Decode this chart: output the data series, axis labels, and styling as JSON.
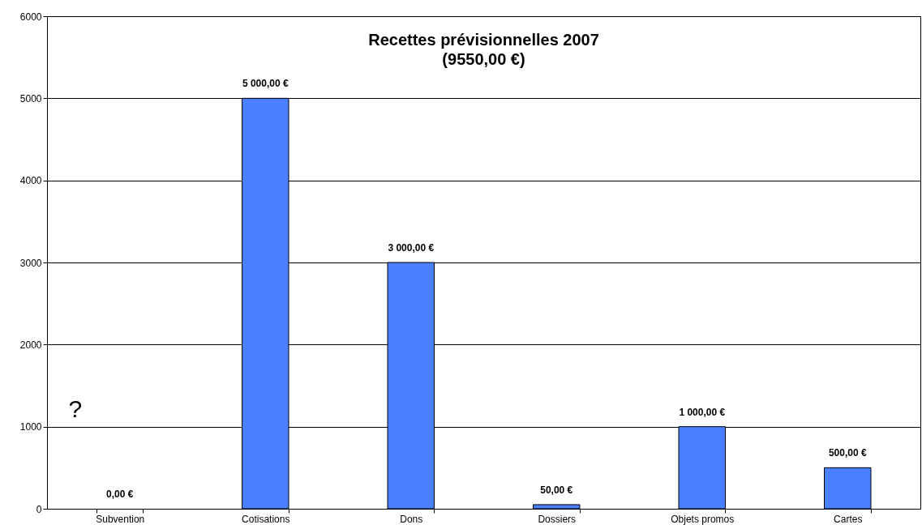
{
  "chart_data": {
    "type": "bar",
    "title": "Recettes prévisionnelles 2007",
    "subtitle": "(9550,00 €)",
    "categories": [
      "Subvention",
      "Cotisations",
      "Dons",
      "Dossiers",
      "Objets promos",
      "Cartes"
    ],
    "values": [
      0,
      5000,
      3000,
      50,
      1000,
      500
    ],
    "value_labels": [
      "0,00 €",
      "5 000,00 €",
      "3 000,00 €",
      "50,00 €",
      "1 000,00 €",
      "500,00 €"
    ],
    "color": "#4a7ffe",
    "ylim": [
      0,
      6000
    ],
    "yticks": [
      0,
      1000,
      2000,
      3000,
      4000,
      5000,
      6000
    ],
    "grid": "y",
    "annotations": [
      "?"
    ]
  }
}
